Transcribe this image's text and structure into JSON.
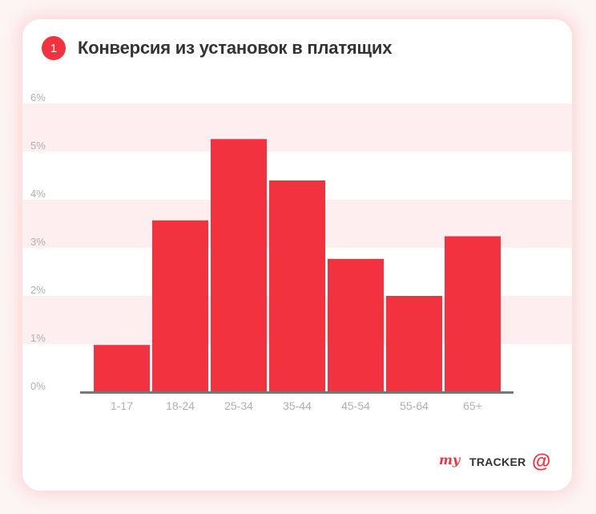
{
  "header": {
    "badge_number": "1",
    "title": "Конверсия из установок в платящих"
  },
  "branding": {
    "my_word": "my",
    "tracker_word": "TRACKER",
    "logo_icon": "at-sign-icon"
  },
  "colors": {
    "bar": "#f2323f",
    "band": "#fdeff0",
    "axis": "#777777",
    "tick_text": "#b0b0b0"
  },
  "chart_data": {
    "type": "bar",
    "title": "Конверсия из установок в платящих",
    "xlabel": "",
    "ylabel": "",
    "categories": [
      "1-17",
      "18-24",
      "25-34",
      "35-44",
      "45-54",
      "55-64",
      "65+"
    ],
    "values": [
      0.98,
      3.57,
      5.26,
      4.4,
      2.77,
      2.0,
      3.24
    ],
    "ylim": [
      0,
      6
    ],
    "yticks": [
      "0%",
      "1%",
      "2%",
      "3%",
      "4%",
      "5%",
      "6%"
    ],
    "grid": "alternating-bands",
    "legend": "none"
  }
}
